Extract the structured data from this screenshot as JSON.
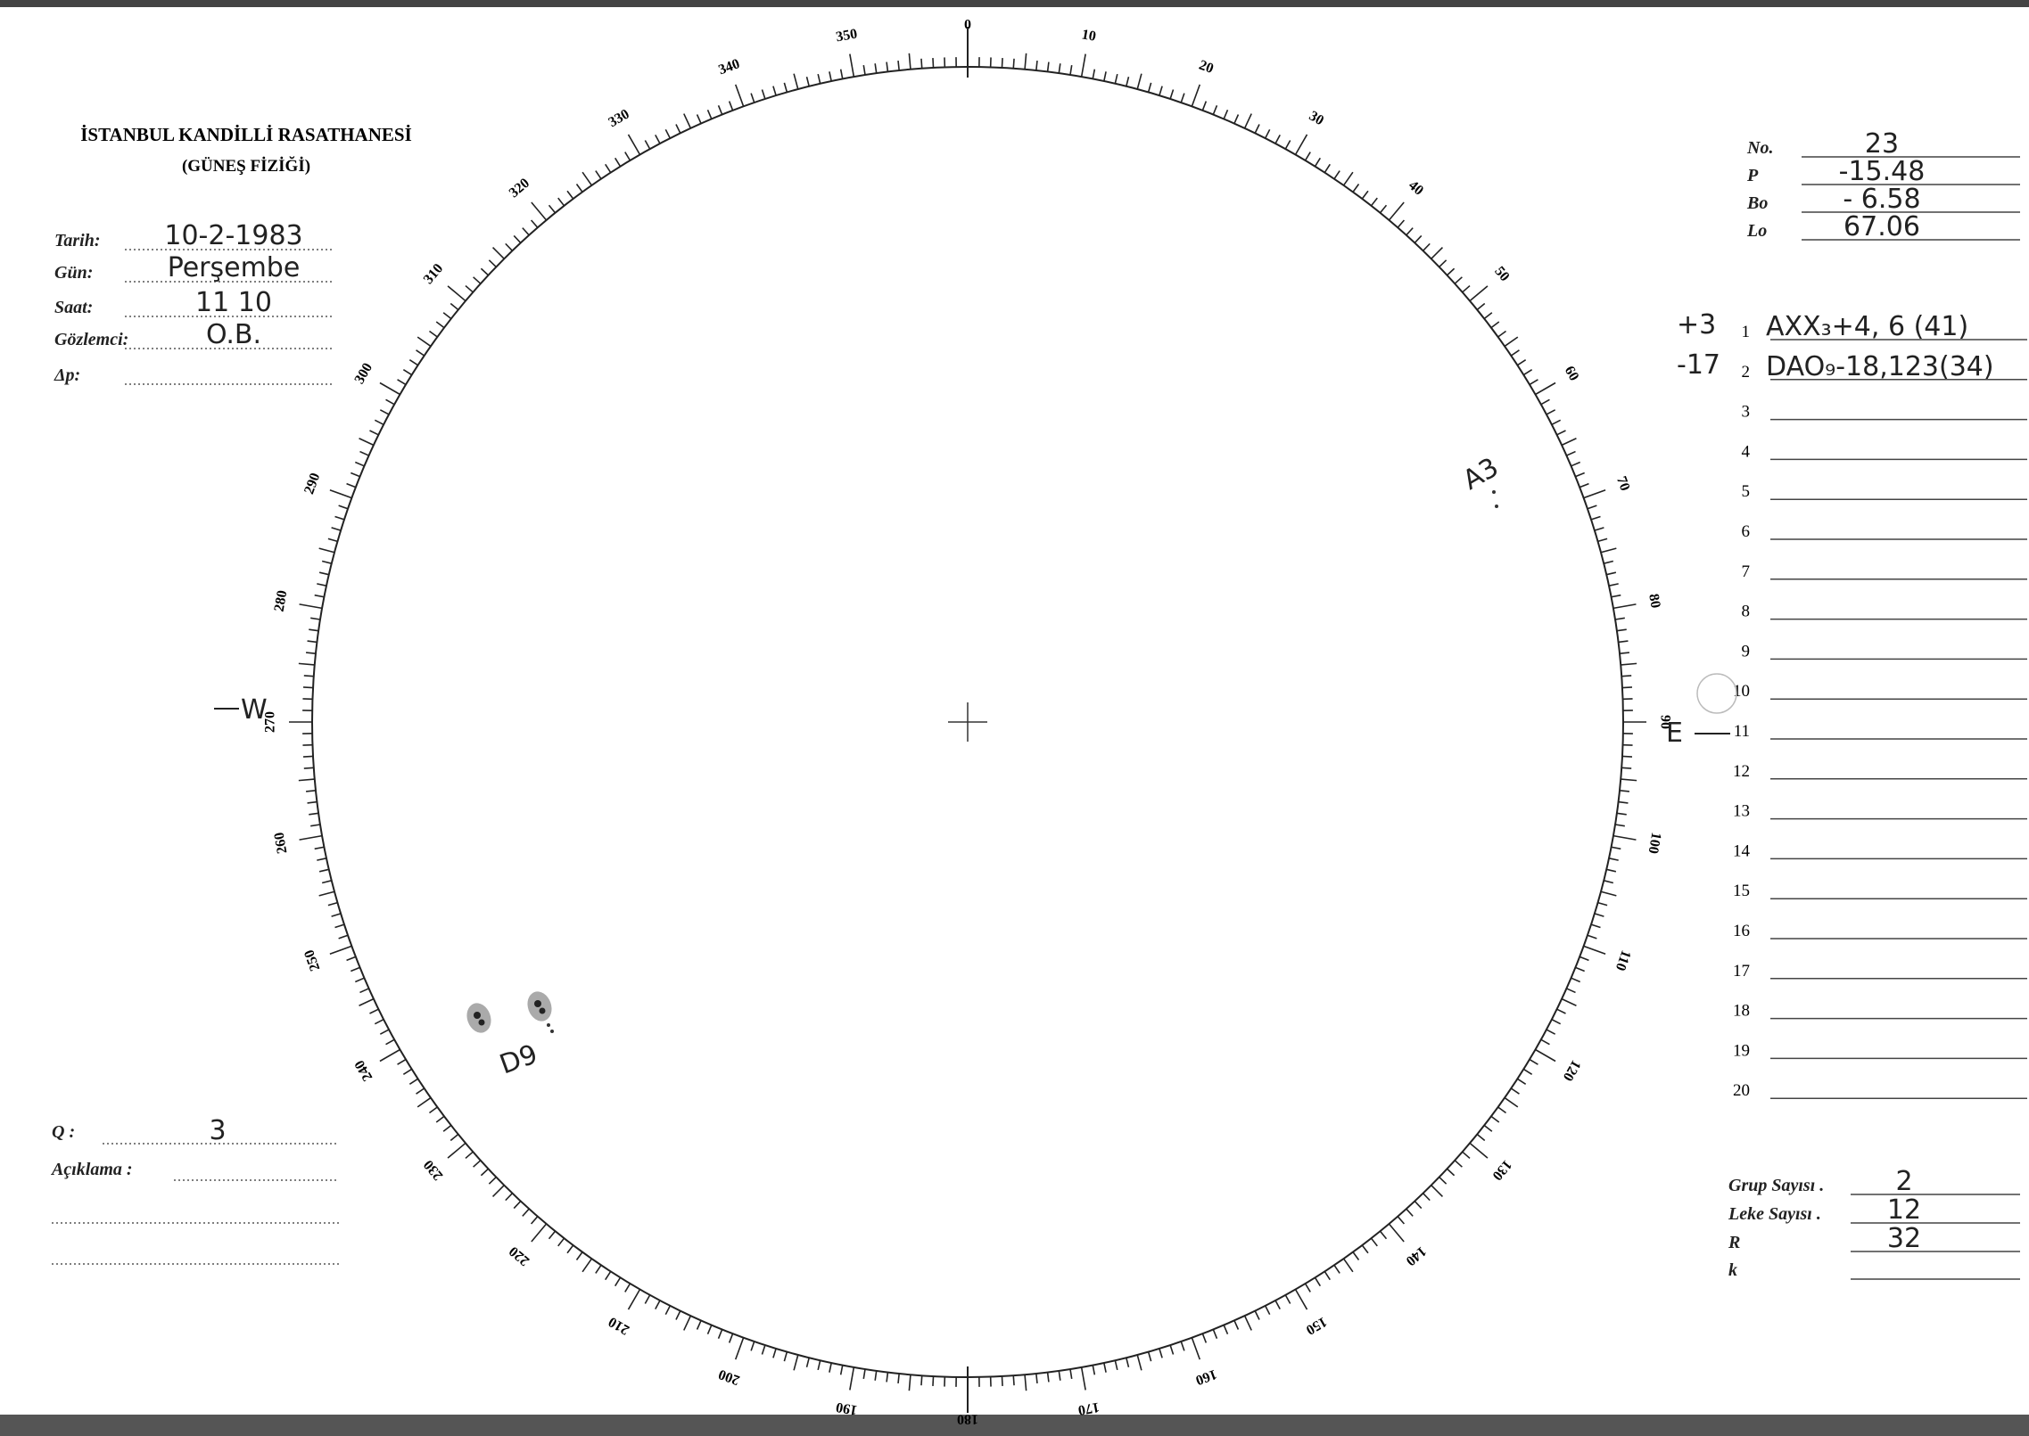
{
  "header": {
    "title": "İSTANBUL KANDİLLİ RASATHANESİ",
    "subtitle": "(GÜNEŞ FİZİĞİ)"
  },
  "left_fields": [
    {
      "label": "Tarih:",
      "value": "10-2-1983"
    },
    {
      "label": "Gün:",
      "value": "Perşembe"
    },
    {
      "label": "Saat:",
      "value": "11 10"
    },
    {
      "label": "Gözlemci:",
      "value": "O.B."
    },
    {
      "label": "Δp:"
    }
  ],
  "q": {
    "label": "Q :",
    "value": "3"
  },
  "remarks": {
    "label": "Açıklama :"
  },
  "right_fields": [
    {
      "label": "No.",
      "value": "23"
    },
    {
      "label": "P",
      "value": "-15.48"
    },
    {
      "label": "Bo",
      "value": "- 6.58"
    },
    {
      "label": "Lo",
      "value": "67.06"
    }
  ],
  "groups": [
    {
      "n": "1",
      "note": "+3",
      "entry": "AXX₃+4, 6 (41)"
    },
    {
      "n": "2",
      "note": "-17",
      "entry": "DAO₉-18,123(34)"
    },
    {
      "n": "3"
    },
    {
      "n": "4"
    },
    {
      "n": "5"
    },
    {
      "n": "6"
    },
    {
      "n": "7"
    },
    {
      "n": "8"
    },
    {
      "n": "9"
    },
    {
      "n": "10"
    },
    {
      "n": "11"
    },
    {
      "n": "12"
    },
    {
      "n": "13"
    },
    {
      "n": "14"
    },
    {
      "n": "15"
    },
    {
      "n": "16"
    },
    {
      "n": "17"
    },
    {
      "n": "18"
    },
    {
      "n": "19"
    },
    {
      "n": "20"
    }
  ],
  "totals": [
    {
      "label": "Grup Sayısı .",
      "value": "2"
    },
    {
      "label": "Leke Sayısı .",
      "value": "12"
    },
    {
      "label": "R",
      "value": "32"
    },
    {
      "label": "k"
    }
  ],
  "dial": {
    "labels": [
      "0",
      "10",
      "20",
      "30",
      "40",
      "50",
      "60",
      "70",
      "80",
      "90",
      "100",
      "110",
      "120",
      "130",
      "140",
      "150",
      "160",
      "170",
      "180",
      "190",
      "200",
      "210",
      "220",
      "230",
      "240",
      "250",
      "260",
      "270",
      "280",
      "290",
      "300",
      "310",
      "320",
      "330",
      "340",
      "350"
    ],
    "west": "W",
    "east": "E"
  },
  "spot_labels": [
    "D9",
    "A3"
  ]
}
